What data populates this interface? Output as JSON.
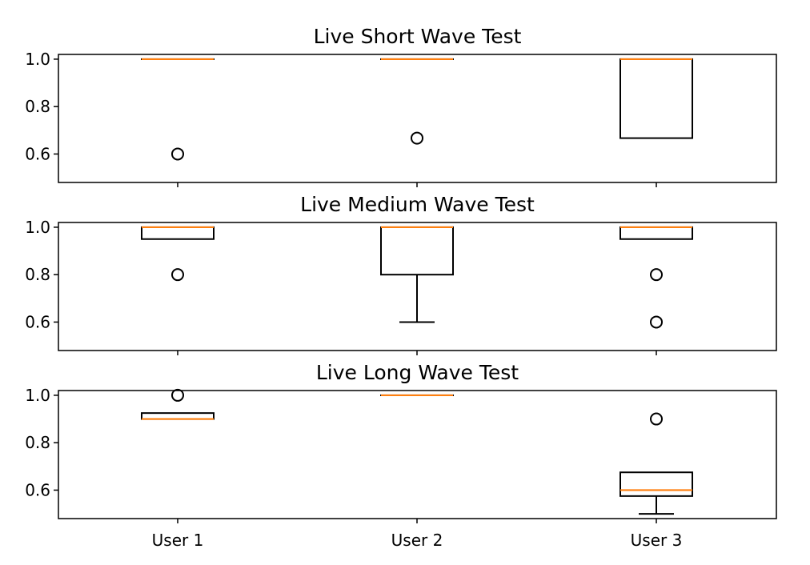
{
  "chart_data": [
    {
      "type": "boxplot",
      "title": "Live Short Wave Test",
      "categories": [
        "User 1",
        "User 2",
        "User 3"
      ],
      "yticks": [
        0.6,
        0.8,
        1.0
      ],
      "ytick_labels": [
        "0.6",
        "0.8",
        "1.0"
      ],
      "ylim": [
        0.48,
        1.02
      ],
      "show_xtick_labels": false,
      "boxes": [
        {
          "category": "User 1",
          "whislo": 1.0,
          "q1": 1.0,
          "med": 1.0,
          "q3": 1.0,
          "whishi": 1.0,
          "fliers": [
            0.6
          ]
        },
        {
          "category": "User 2",
          "whislo": 1.0,
          "q1": 1.0,
          "med": 1.0,
          "q3": 1.0,
          "whishi": 1.0,
          "fliers": [
            0.667
          ]
        },
        {
          "category": "User 3",
          "whislo": 0.667,
          "q1": 0.667,
          "med": 1.0,
          "q3": 1.0,
          "whishi": 1.0,
          "fliers": []
        }
      ]
    },
    {
      "type": "boxplot",
      "title": "Live Medium Wave Test",
      "categories": [
        "User 1",
        "User 2",
        "User 3"
      ],
      "yticks": [
        0.6,
        0.8,
        1.0
      ],
      "ytick_labels": [
        "0.6",
        "0.8",
        "1.0"
      ],
      "ylim": [
        0.48,
        1.02
      ],
      "show_xtick_labels": false,
      "boxes": [
        {
          "category": "User 1",
          "whislo": 0.95,
          "q1": 0.95,
          "med": 1.0,
          "q3": 1.0,
          "whishi": 1.0,
          "fliers": [
            0.8
          ]
        },
        {
          "category": "User 2",
          "whislo": 0.6,
          "q1": 0.8,
          "med": 1.0,
          "q3": 1.0,
          "whishi": 1.0,
          "fliers": []
        },
        {
          "category": "User 3",
          "whislo": 0.95,
          "q1": 0.95,
          "med": 1.0,
          "q3": 1.0,
          "whishi": 1.0,
          "fliers": [
            0.8,
            0.6
          ]
        }
      ]
    },
    {
      "type": "boxplot",
      "title": "Live Long Wave Test",
      "categories": [
        "User 1",
        "User 2",
        "User 3"
      ],
      "yticks": [
        0.6,
        0.8,
        1.0
      ],
      "ytick_labels": [
        "0.6",
        "0.8",
        "1.0"
      ],
      "ylim": [
        0.48,
        1.02
      ],
      "show_xtick_labels": true,
      "boxes": [
        {
          "category": "User 1",
          "whislo": 0.9,
          "q1": 0.9,
          "med": 0.9,
          "q3": 0.925,
          "whishi": 0.925,
          "fliers": [
            1.0
          ]
        },
        {
          "category": "User 2",
          "whislo": 1.0,
          "q1": 1.0,
          "med": 1.0,
          "q3": 1.0,
          "whishi": 1.0,
          "fliers": []
        },
        {
          "category": "User 3",
          "whislo": 0.5,
          "q1": 0.575,
          "med": 0.6,
          "q3": 0.675,
          "whishi": 0.675,
          "fliers": [
            0.9
          ]
        }
      ]
    }
  ],
  "colors": {
    "median": "#ff7f0e",
    "box": "#000000",
    "background": "#ffffff"
  }
}
